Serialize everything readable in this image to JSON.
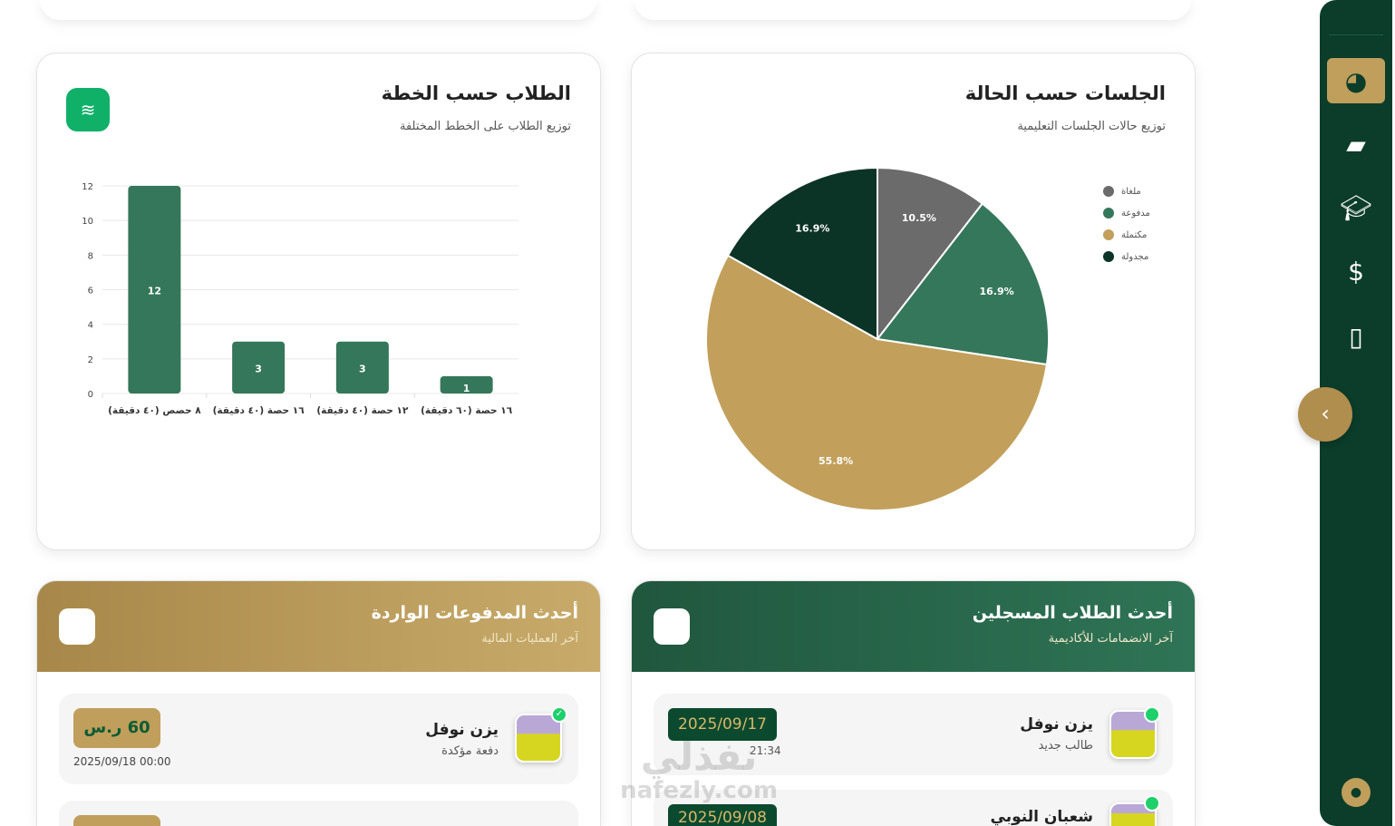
{
  "plans_card": {
    "title": "الطلاب حسب الخطة",
    "subtitle": "توزيع الطلاب على الخطط المختلفة",
    "icon": "layers-icon"
  },
  "sessions_card": {
    "title": "الجلسات حسب الحالة",
    "subtitle": "توزيع حالات الجلسات التعليمية"
  },
  "chart_data": [
    {
      "type": "bar",
      "categories": [
        "٨ حصص (٤٠ دقيقة)",
        "١٦ حصة (٤٠ دقيقة)",
        "١٢ حصة (٤٠ دقيقة)",
        "١٦ حصة (٦٠ دقيقة)"
      ],
      "values": [
        12,
        3,
        3,
        1
      ],
      "ylim": [
        0,
        12
      ],
      "yticks": [
        0,
        2,
        4,
        6,
        8,
        10,
        12
      ],
      "grid": true,
      "color": "#35775a"
    },
    {
      "type": "pie",
      "labels": [
        "ملغاة",
        "مدفوعة",
        "مكتملة",
        "مجدولة"
      ],
      "values": [
        10.5,
        16.9,
        55.8,
        16.9
      ],
      "value_labels": [
        "10.5%",
        "16.9%",
        "55.8%",
        "16.9%"
      ],
      "colors": [
        "#6b6b6b",
        "#35775a",
        "#c2a05c",
        "#0b3326"
      ],
      "legend": "top-right"
    }
  ],
  "payments": {
    "title": "أحدث المدفوعات الواردة",
    "subtitle": "آخر العمليات المالية",
    "items": [
      {
        "name": "يزن نوفل",
        "status": "دفعة مؤكدة",
        "amount": "60 ر.س",
        "date": "2025/09/18 00:00"
      }
    ]
  },
  "students": {
    "title": "أحدث الطلاب المسجلين",
    "subtitle": "آخر الانضمامات للأكاديمية",
    "items": [
      {
        "name": "يزن نوفل",
        "status": "طالب جديد",
        "date": "2025/09/17",
        "time": "21:34"
      },
      {
        "name": "شعبان النوبي",
        "date": "2025/09/08"
      }
    ]
  },
  "sidebar": {
    "items": [
      "pie-chart-icon",
      "teacher-icon",
      "graduate-icon",
      "invoice-icon",
      "book-icon"
    ],
    "active": 0
  },
  "watermark": {
    "text": "نفذلي",
    "url": "nafezly.com"
  },
  "colors": {
    "primary": "#0b3d2a",
    "gold": "#bf9f5b",
    "green": "#35775a"
  }
}
